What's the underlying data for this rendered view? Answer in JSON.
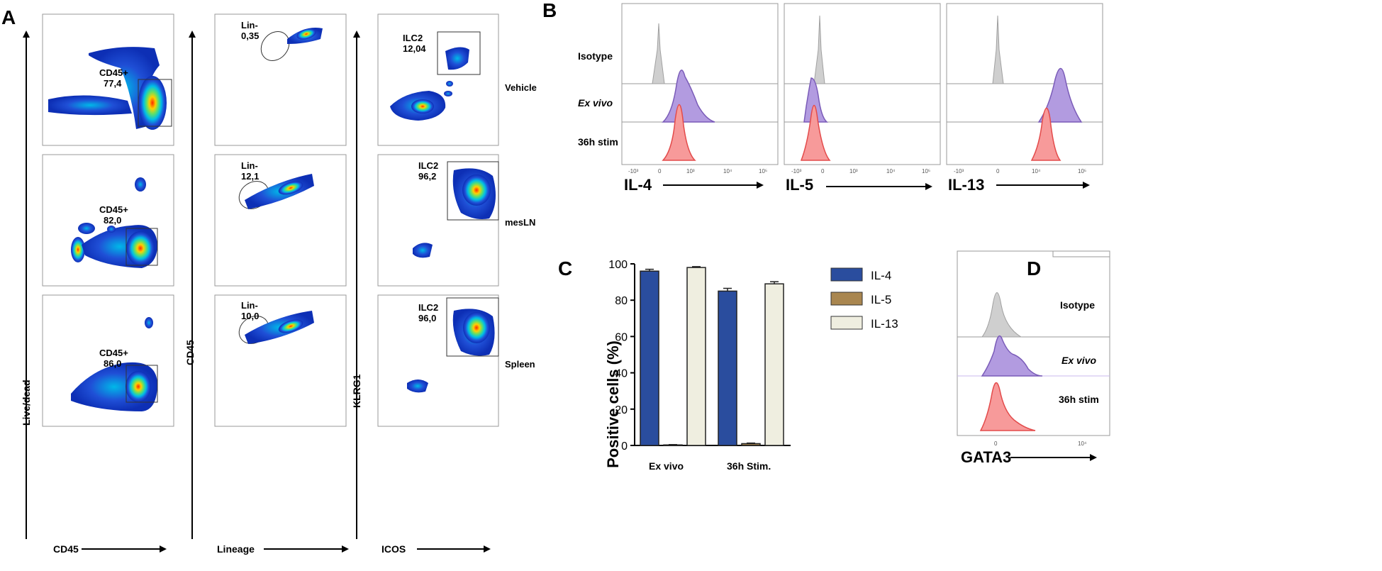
{
  "panels": {
    "a": "A",
    "b": "B",
    "c": "C",
    "d": "D"
  },
  "panel_a": {
    "axes": {
      "live_dead": "Live/dead",
      "cd45_x": "CD45",
      "cd45_y": "CD45",
      "lineage": "Lineage",
      "klrg1": "KLRG1",
      "icos": "ICOS"
    },
    "rows": [
      {
        "tissue": "Vehicle",
        "cd45_gate": "CD45+",
        "cd45_pct": "77,4",
        "lin_gate": "Lin-",
        "lin_pct": "0,35",
        "ilc2_gate": "ILC2",
        "ilc2_pct": "12,04"
      },
      {
        "tissue": "mesLN",
        "cd45_gate": "CD45+",
        "cd45_pct": "82,0",
        "lin_gate": "Lin-",
        "lin_pct": "12,1",
        "ilc2_gate": "ILC2",
        "ilc2_pct": "96,2"
      },
      {
        "tissue": "Spleen",
        "cd45_gate": "CD45+",
        "cd45_pct": "86,0",
        "lin_gate": "Lin-",
        "lin_pct": "10,0",
        "ilc2_gate": "ILC2",
        "ilc2_pct": "96,0"
      }
    ]
  },
  "panel_b": {
    "rows": [
      "Isotype",
      "Ex vivo",
      "36h stim"
    ],
    "cytokines": [
      "IL-4",
      "IL-5",
      "IL-13"
    ]
  },
  "chart_data": {
    "type": "bar",
    "categories": [
      "Ex vivo",
      "36h Stim."
    ],
    "series": [
      {
        "name": "IL-4",
        "values": [
          96,
          85
        ],
        "errors": [
          1,
          1.5
        ],
        "color": "#2a4d9e"
      },
      {
        "name": "IL-5",
        "values": [
          0.3,
          1
        ],
        "errors": [
          0.2,
          0.3
        ],
        "color": "#a9864f"
      },
      {
        "name": "IL-13",
        "values": [
          98,
          89
        ],
        "errors": [
          0.5,
          1.2
        ],
        "color": "#efeee0"
      }
    ],
    "ylabel": "Positive cells (%)",
    "ylim": [
      0,
      100
    ],
    "yticks": [
      "0",
      "20",
      "40",
      "60",
      "80",
      "100"
    ]
  },
  "panel_d": {
    "rows": [
      "Isotype",
      "Ex vivo",
      "36h stim"
    ],
    "xlabel": "GATA3"
  },
  "ticks": {
    "t3n": "-10³",
    "t0": "0",
    "t3": "10³",
    "t4": "10⁴",
    "t5": "10⁵"
  },
  "colors": {
    "isotype": "#b8b8b8",
    "exvivo": "#8c6fc4",
    "stim": "#f26b6b"
  }
}
